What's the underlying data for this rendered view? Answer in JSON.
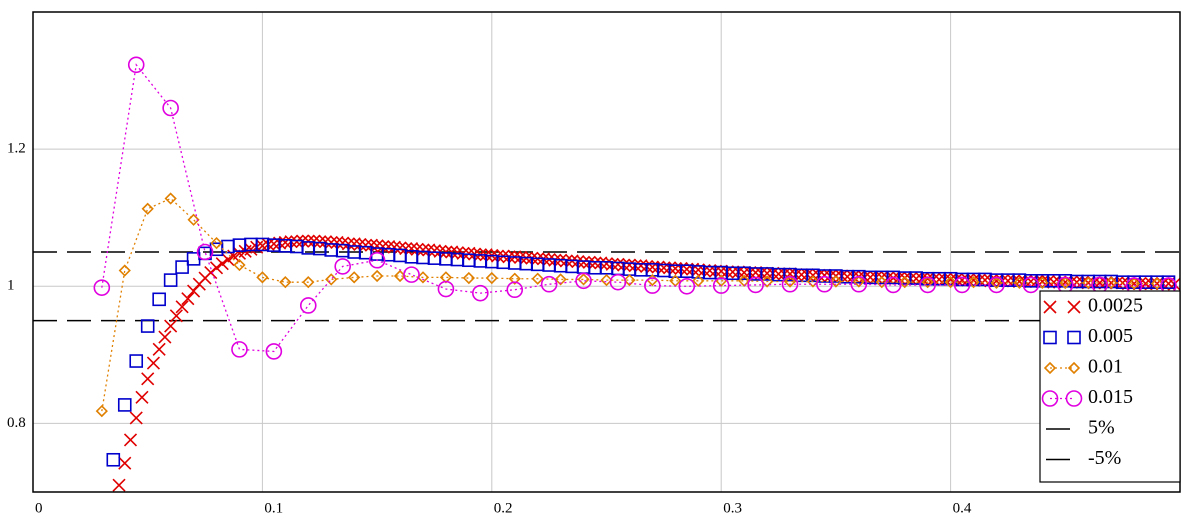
{
  "chart_data": {
    "type": "scatter",
    "xlim": [
      0,
      0.5
    ],
    "ylim": [
      0.7,
      1.4
    ],
    "xticks": [
      0,
      0.1,
      0.2,
      0.3,
      0.4
    ],
    "yticks": [
      0.8,
      1,
      1.2
    ],
    "grid": true,
    "legend": "lower right",
    "series": [
      {
        "name": "0.0025",
        "color": "#e00000",
        "marker": "x",
        "line": false,
        "x": [
          0.0375,
          0.04,
          0.0425,
          0.045,
          0.0475,
          0.05,
          0.0525,
          0.055,
          0.0575,
          0.06,
          0.0625,
          0.065,
          0.0675,
          0.07,
          0.0725,
          0.075,
          0.0775,
          0.08,
          0.0825,
          0.085,
          0.0875,
          0.09,
          0.0925,
          0.095,
          0.0975,
          0.1,
          0.1025,
          0.105,
          0.1075,
          0.11,
          0.1125,
          0.115,
          0.1175,
          0.12,
          0.1225,
          0.125,
          0.1275,
          0.13,
          0.1325,
          0.135,
          0.1375,
          0.14,
          0.1425,
          0.145,
          0.1475,
          0.15,
          0.1525,
          0.155,
          0.1575,
          0.16,
          0.1625,
          0.165,
          0.1675,
          0.17,
          0.1725,
          0.175,
          0.1775,
          0.18,
          0.1825,
          0.185,
          0.1875,
          0.19,
          0.1925,
          0.195,
          0.1975,
          0.2,
          0.2025,
          0.205,
          0.2075,
          0.21,
          0.2125,
          0.215,
          0.2175,
          0.22,
          0.2225,
          0.225,
          0.2275,
          0.23,
          0.2325,
          0.235,
          0.2375,
          0.24,
          0.2425,
          0.245,
          0.2475,
          0.25,
          0.2525,
          0.255,
          0.2575,
          0.26,
          0.2625,
          0.265,
          0.2675,
          0.27,
          0.2725,
          0.275,
          0.2775,
          0.28,
          0.2825,
          0.285,
          0.2875,
          0.29,
          0.2925,
          0.295,
          0.2975,
          0.3,
          0.3025,
          0.305,
          0.3075,
          0.31,
          0.3125,
          0.315,
          0.3175,
          0.32,
          0.3225,
          0.325,
          0.3275,
          0.33,
          0.3325,
          0.335,
          0.3375,
          0.34,
          0.3425,
          0.345,
          0.3475,
          0.35,
          0.3525,
          0.355,
          0.3575,
          0.36,
          0.3625,
          0.365,
          0.3675,
          0.37,
          0.3725,
          0.375,
          0.3775,
          0.38,
          0.3825,
          0.385,
          0.3875,
          0.39,
          0.3925,
          0.395,
          0.3975,
          0.4,
          0.4025,
          0.405,
          0.4075,
          0.41,
          0.4125,
          0.415,
          0.4175,
          0.42,
          0.4225,
          0.425,
          0.4275,
          0.43,
          0.4325,
          0.435,
          0.4375,
          0.44,
          0.4425,
          0.445,
          0.4475,
          0.45,
          0.4525,
          0.455,
          0.4575,
          0.46,
          0.4625,
          0.465,
          0.4675,
          0.47,
          0.4725,
          0.475,
          0.4775,
          0.48,
          0.4825,
          0.485,
          0.4875,
          0.49,
          0.4925,
          0.495,
          0.4975
        ],
        "values": [
          0.71,
          0.742,
          0.776,
          0.808,
          0.838,
          0.865,
          0.888,
          0.908,
          0.926,
          0.942,
          0.957,
          0.97,
          0.982,
          0.993,
          1.003,
          1.012,
          1.02,
          1.027,
          1.033,
          1.039,
          1.044,
          1.048,
          1.051,
          1.054,
          1.057,
          1.059,
          1.061,
          1.062,
          1.063,
          1.064,
          1.065,
          1.065,
          1.066,
          1.066,
          1.066,
          1.065,
          1.065,
          1.064,
          1.064,
          1.063,
          1.062,
          1.062,
          1.061,
          1.06,
          1.06,
          1.059,
          1.058,
          1.058,
          1.057,
          1.056,
          1.055,
          1.055,
          1.054,
          1.053,
          1.053,
          1.052,
          1.051,
          1.05,
          1.05,
          1.049,
          1.048,
          1.048,
          1.047,
          1.046,
          1.046,
          1.045,
          1.044,
          1.044,
          1.043,
          1.043,
          1.042,
          1.041,
          1.041,
          1.04,
          1.04,
          1.039,
          1.038,
          1.038,
          1.037,
          1.037,
          1.036,
          1.035,
          1.035,
          1.034,
          1.034,
          1.033,
          1.032,
          1.032,
          1.031,
          1.031,
          1.03,
          1.03,
          1.029,
          1.028,
          1.028,
          1.027,
          1.027,
          1.026,
          1.026,
          1.025,
          1.025,
          1.024,
          1.023,
          1.023,
          1.022,
          1.022,
          1.021,
          1.021,
          1.021,
          1.02,
          1.02,
          1.02,
          1.019,
          1.019,
          1.019,
          1.018,
          1.018,
          1.018,
          1.017,
          1.017,
          1.017,
          1.016,
          1.016,
          1.016,
          1.015,
          1.015,
          1.015,
          1.014,
          1.014,
          1.014,
          1.013,
          1.013,
          1.013,
          1.013,
          1.012,
          1.012,
          1.012,
          1.012,
          1.011,
          1.011,
          1.011,
          1.011,
          1.01,
          1.01,
          1.01,
          1.01,
          1.01,
          1.009,
          1.009,
          1.009,
          1.009,
          1.009,
          1.008,
          1.008,
          1.008,
          1.008,
          1.008,
          1.007,
          1.007,
          1.007,
          1.007,
          1.007,
          1.007,
          1.006,
          1.006,
          1.006,
          1.006,
          1.006,
          1.006,
          1.005,
          1.005,
          1.005,
          1.005,
          1.005,
          1.005,
          1.005,
          1.004,
          1.004,
          1.004,
          1.004,
          1.004,
          1.004,
          1.004,
          1.004,
          1.003
        ]
      },
      {
        "name": "0.005",
        "color": "#0000cc",
        "marker": "square",
        "line": false,
        "x": [
          0.035,
          0.04,
          0.045,
          0.05,
          0.055,
          0.06,
          0.065,
          0.07,
          0.075,
          0.08,
          0.085,
          0.09,
          0.095,
          0.1,
          0.105,
          0.11,
          0.115,
          0.12,
          0.125,
          0.13,
          0.135,
          0.14,
          0.145,
          0.15,
          0.155,
          0.16,
          0.165,
          0.17,
          0.175,
          0.18,
          0.185,
          0.19,
          0.195,
          0.2,
          0.205,
          0.21,
          0.215,
          0.22,
          0.225,
          0.23,
          0.235,
          0.24,
          0.245,
          0.25,
          0.255,
          0.26,
          0.265,
          0.27,
          0.275,
          0.28,
          0.285,
          0.29,
          0.295,
          0.3,
          0.305,
          0.31,
          0.315,
          0.32,
          0.325,
          0.33,
          0.335,
          0.34,
          0.345,
          0.35,
          0.355,
          0.36,
          0.365,
          0.37,
          0.375,
          0.38,
          0.385,
          0.39,
          0.395,
          0.4,
          0.405,
          0.41,
          0.415,
          0.42,
          0.425,
          0.43,
          0.435,
          0.44,
          0.445,
          0.45,
          0.455,
          0.46,
          0.465,
          0.47,
          0.475,
          0.48,
          0.485,
          0.49,
          0.495
        ],
        "values": [
          0.747,
          0.827,
          0.891,
          0.942,
          0.981,
          1.009,
          1.028,
          1.04,
          1.048,
          1.054,
          1.058,
          1.06,
          1.061,
          1.061,
          1.06,
          1.059,
          1.058,
          1.056,
          1.055,
          1.053,
          1.052,
          1.05,
          1.049,
          1.047,
          1.046,
          1.045,
          1.043,
          1.042,
          1.041,
          1.04,
          1.039,
          1.038,
          1.037,
          1.036,
          1.035,
          1.034,
          1.033,
          1.032,
          1.031,
          1.03,
          1.029,
          1.028,
          1.027,
          1.027,
          1.026,
          1.025,
          1.024,
          1.024,
          1.023,
          1.022,
          1.022,
          1.021,
          1.02,
          1.02,
          1.019,
          1.019,
          1.018,
          1.018,
          1.017,
          1.017,
          1.016,
          1.016,
          1.015,
          1.015,
          1.014,
          1.014,
          1.013,
          1.013,
          1.013,
          1.012,
          1.012,
          1.011,
          1.011,
          1.011,
          1.01,
          1.01,
          1.01,
          1.009,
          1.009,
          1.009,
          1.008,
          1.008,
          1.008,
          1.008,
          1.007,
          1.007,
          1.007,
          1.007,
          1.006,
          1.006,
          1.006,
          1.006,
          1.006
        ]
      },
      {
        "name": "0.01",
        "color": "#e08000",
        "marker": "diamond",
        "line": true,
        "x": [
          0.03,
          0.04,
          0.05,
          0.06,
          0.07,
          0.08,
          0.09,
          0.1,
          0.11,
          0.12,
          0.13,
          0.14,
          0.15,
          0.16,
          0.17,
          0.18,
          0.19,
          0.2,
          0.21,
          0.22,
          0.23,
          0.24,
          0.25,
          0.26,
          0.27,
          0.28,
          0.29,
          0.3,
          0.31,
          0.32,
          0.33,
          0.34,
          0.35,
          0.36,
          0.37,
          0.38,
          0.39,
          0.4,
          0.41,
          0.42,
          0.43,
          0.44,
          0.45,
          0.46,
          0.47,
          0.48,
          0.49
        ],
        "values": [
          0.818,
          1.023,
          1.113,
          1.128,
          1.097,
          1.063,
          1.031,
          1.013,
          1.006,
          1.006,
          1.01,
          1.013,
          1.015,
          1.015,
          1.013,
          1.013,
          1.012,
          1.012,
          1.011,
          1.011,
          1.01,
          1.01,
          1.009,
          1.009,
          1.009,
          1.008,
          1.008,
          1.008,
          1.008,
          1.007,
          1.007,
          1.007,
          1.007,
          1.007,
          1.006,
          1.006,
          1.006,
          1.006,
          1.006,
          1.005,
          1.005,
          1.005,
          1.005,
          1.005,
          1.005,
          1.004,
          1.004
        ]
      },
      {
        "name": "0.015",
        "color": "#e000e0",
        "marker": "circle",
        "line": true,
        "x": [
          0.03,
          0.045,
          0.06,
          0.075,
          0.09,
          0.105,
          0.12,
          0.135,
          0.15,
          0.165,
          0.18,
          0.195,
          0.21,
          0.225,
          0.24,
          0.255,
          0.27,
          0.285,
          0.3,
          0.315,
          0.33,
          0.345,
          0.36,
          0.375,
          0.39,
          0.405,
          0.42,
          0.435,
          0.45,
          0.465,
          0.48,
          0.495
        ],
        "values": [
          0.998,
          1.323,
          1.26,
          1.05,
          0.908,
          0.905,
          0.972,
          1.029,
          1.038,
          1.017,
          0.996,
          0.99,
          0.995,
          1.003,
          1.008,
          1.006,
          1.001,
          1.0,
          1.001,
          1.002,
          1.003,
          1.003,
          1.003,
          1.002,
          1.002,
          1.002,
          1.002,
          1.002,
          1.002,
          1.002,
          1.001,
          1.001
        ]
      }
    ],
    "reference_lines": [
      {
        "name": "5%",
        "value": 1.05,
        "color": "#000000",
        "dash": "dash"
      },
      {
        "name": "-5%",
        "value": 0.95,
        "color": "#000000",
        "dash": "dash-dot"
      }
    ]
  }
}
